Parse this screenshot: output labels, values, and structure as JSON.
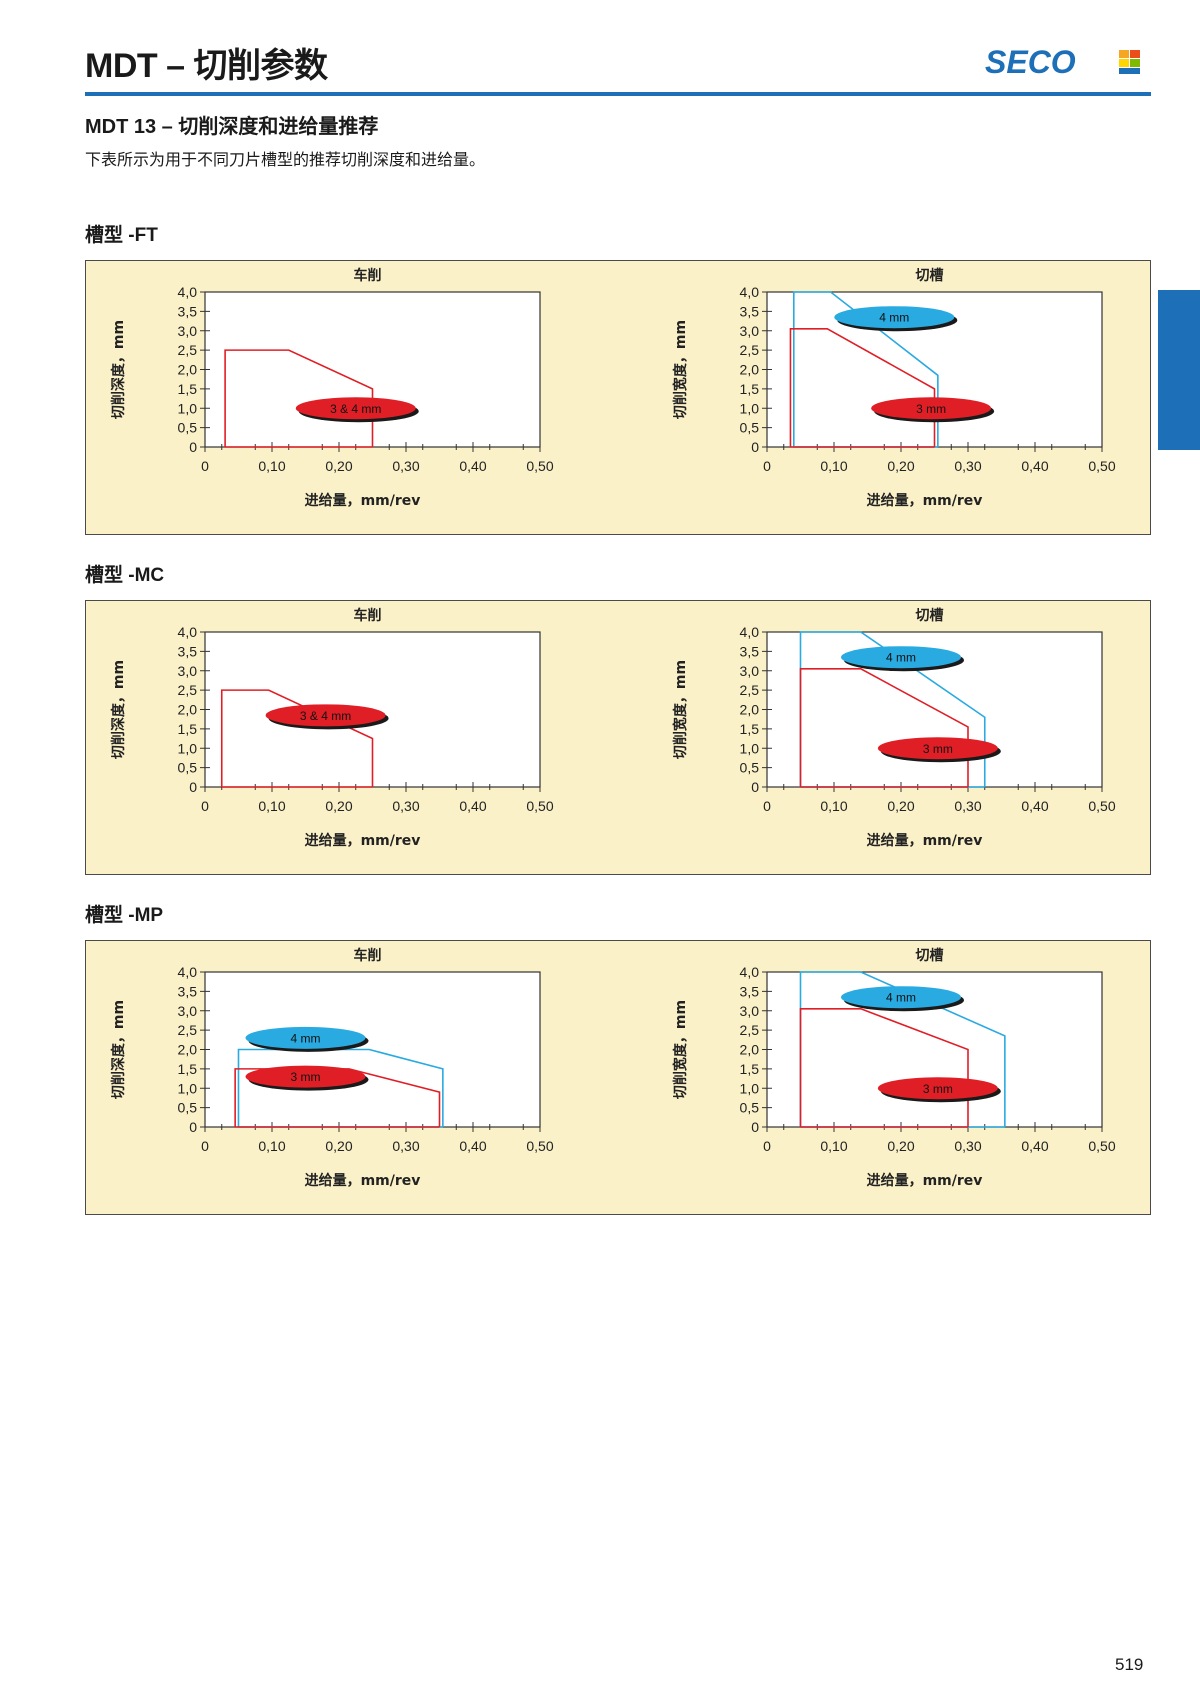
{
  "header": {
    "title": "MDT – 切削参数",
    "logo_text": "SECO",
    "brand_color": "#1d6fb8"
  },
  "subtitle": "MDT 13 – 切削深度和进给量推荐",
  "description": "下表所示为用于不同刀片槽型的推荐切削深度和进给量。",
  "page_number": "519",
  "colors": {
    "panel": "#fbf1c9",
    "red": "#e01e26",
    "blue": "#29aae1"
  },
  "sections": [
    {
      "label": "槽型 -FT"
    },
    {
      "label": "槽型 -MC"
    },
    {
      "label": "槽型 -MP"
    }
  ],
  "chart_data": [
    {
      "id": "FT-turning",
      "type": "area",
      "title": "车削",
      "xlabel": "进给量，mm/rev",
      "ylabel": "切削深度，mm",
      "xlim": [
        0,
        0.5
      ],
      "ylim": [
        0,
        4.0
      ],
      "xticks": [
        "0",
        "0,10",
        "0,20",
        "0,30",
        "0,40",
        "0,50"
      ],
      "yticks": [
        "0",
        "0,5",
        "1,0",
        "1,5",
        "2,0",
        "2,5",
        "3,0",
        "3,5",
        "4,0"
      ],
      "series": [
        {
          "name": "3 & 4 mm",
          "color": "red",
          "label_at": [
            0.225,
            1.0
          ],
          "points": [
            [
              0.03,
              0
            ],
            [
              0.03,
              2.5
            ],
            [
              0.125,
              2.5
            ],
            [
              0.25,
              1.5
            ],
            [
              0.25,
              0
            ]
          ]
        }
      ]
    },
    {
      "id": "FT-grooving",
      "type": "area",
      "title": "切槽",
      "xlabel": "进给量，mm/rev",
      "ylabel": "切削宽度，mm",
      "xlim": [
        0,
        0.5
      ],
      "ylim": [
        0,
        4.0
      ],
      "xticks": [
        "0",
        "0,10",
        "0,20",
        "0,30",
        "0,40",
        "0,50"
      ],
      "yticks": [
        "0",
        "0,5",
        "1,0",
        "1,5",
        "2,0",
        "2,5",
        "3,0",
        "3,5",
        "4,0"
      ],
      "series": [
        {
          "name": "4 mm",
          "color": "blue",
          "label_at": [
            0.19,
            3.35
          ],
          "points": [
            [
              0.04,
              0
            ],
            [
              0.04,
              4.0
            ],
            [
              0.095,
              4.0
            ],
            [
              0.255,
              1.85
            ],
            [
              0.255,
              0
            ]
          ]
        },
        {
          "name": "3 mm",
          "color": "red",
          "label_at": [
            0.245,
            1.0
          ],
          "points": [
            [
              0.035,
              0
            ],
            [
              0.035,
              3.05
            ],
            [
              0.09,
              3.05
            ],
            [
              0.25,
              1.5
            ],
            [
              0.25,
              0
            ]
          ]
        }
      ]
    },
    {
      "id": "MC-turning",
      "type": "area",
      "title": "车削",
      "xlabel": "进给量，mm/rev",
      "ylabel": "切削深度，mm",
      "xlim": [
        0,
        0.5
      ],
      "ylim": [
        0,
        4.0
      ],
      "xticks": [
        "0",
        "0,10",
        "0,20",
        "0,30",
        "0,40",
        "0,50"
      ],
      "yticks": [
        "0",
        "0,5",
        "1,0",
        "1,5",
        "2,0",
        "2,5",
        "3,0",
        "3,5",
        "4,0"
      ],
      "series": [
        {
          "name": "3 & 4 mm",
          "color": "red",
          "label_at": [
            0.18,
            1.85
          ],
          "points": [
            [
              0.025,
              0
            ],
            [
              0.025,
              2.5
            ],
            [
              0.095,
              2.5
            ],
            [
              0.25,
              1.25
            ],
            [
              0.25,
              0
            ]
          ]
        }
      ]
    },
    {
      "id": "MC-grooving",
      "type": "area",
      "title": "切槽",
      "xlabel": "进给量，mm/rev",
      "ylabel": "切削宽度，mm",
      "xlim": [
        0,
        0.5
      ],
      "ylim": [
        0,
        4.0
      ],
      "xticks": [
        "0",
        "0,10",
        "0,20",
        "0,30",
        "0,40",
        "0,50"
      ],
      "yticks": [
        "0",
        "0,5",
        "1,0",
        "1,5",
        "2,0",
        "2,5",
        "3,0",
        "3,5",
        "4,0"
      ],
      "series": [
        {
          "name": "4 mm",
          "color": "blue",
          "label_at": [
            0.2,
            3.35
          ],
          "points": [
            [
              0.05,
              0
            ],
            [
              0.05,
              4.0
            ],
            [
              0.14,
              4.0
            ],
            [
              0.325,
              1.8
            ],
            [
              0.325,
              0
            ]
          ]
        },
        {
          "name": "3 mm",
          "color": "red",
          "label_at": [
            0.255,
            1.0
          ],
          "points": [
            [
              0.05,
              0
            ],
            [
              0.05,
              3.05
            ],
            [
              0.14,
              3.05
            ],
            [
              0.3,
              1.55
            ],
            [
              0.3,
              0
            ]
          ]
        }
      ]
    },
    {
      "id": "MP-turning",
      "type": "area",
      "title": "车削",
      "xlabel": "进给量，mm/rev",
      "ylabel": "切削深度，mm",
      "xlim": [
        0,
        0.5
      ],
      "ylim": [
        0,
        4.0
      ],
      "xticks": [
        "0",
        "0,10",
        "0,20",
        "0,30",
        "0,40",
        "0,50"
      ],
      "yticks": [
        "0",
        "0,5",
        "1,0",
        "1,5",
        "2,0",
        "2,5",
        "3,0",
        "3,5",
        "4,0"
      ],
      "series": [
        {
          "name": "4 mm",
          "color": "blue",
          "label_at": [
            0.15,
            2.3
          ],
          "points": [
            [
              0.05,
              0
            ],
            [
              0.05,
              2.0
            ],
            [
              0.245,
              2.0
            ],
            [
              0.355,
              1.5
            ],
            [
              0.355,
              0
            ]
          ]
        },
        {
          "name": "3 mm",
          "color": "red",
          "label_at": [
            0.15,
            1.3
          ],
          "points": [
            [
              0.045,
              0
            ],
            [
              0.045,
              1.5
            ],
            [
              0.215,
              1.5
            ],
            [
              0.35,
              0.9
            ],
            [
              0.35,
              0
            ]
          ]
        }
      ]
    },
    {
      "id": "MP-grooving",
      "type": "area",
      "title": "切槽",
      "xlabel": "进给量，mm/rev",
      "ylabel": "切削宽度，mm",
      "xlim": [
        0,
        0.5
      ],
      "ylim": [
        0,
        4.0
      ],
      "xticks": [
        "0",
        "0,10",
        "0,20",
        "0,30",
        "0,40",
        "0,50"
      ],
      "yticks": [
        "0",
        "0,5",
        "1,0",
        "1,5",
        "2,0",
        "2,5",
        "3,0",
        "3,5",
        "4,0"
      ],
      "series": [
        {
          "name": "4 mm",
          "color": "blue",
          "label_at": [
            0.2,
            3.35
          ],
          "points": [
            [
              0.05,
              0
            ],
            [
              0.05,
              4.0
            ],
            [
              0.14,
              4.0
            ],
            [
              0.355,
              2.35
            ],
            [
              0.355,
              0
            ]
          ]
        },
        {
          "name": "3 mm",
          "color": "red",
          "label_at": [
            0.255,
            1.0
          ],
          "points": [
            [
              0.05,
              0
            ],
            [
              0.05,
              3.05
            ],
            [
              0.14,
              3.05
            ],
            [
              0.3,
              2.0
            ],
            [
              0.3,
              0
            ]
          ]
        }
      ]
    }
  ]
}
